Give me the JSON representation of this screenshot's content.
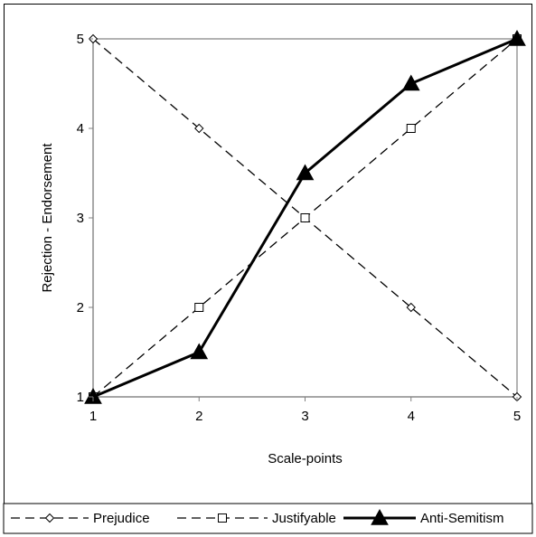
{
  "chart_data": {
    "type": "line",
    "x": [
      1,
      2,
      3,
      4,
      5
    ],
    "xlabel": "Scale-points",
    "ylabel": "Rejection - Endorsement",
    "xlim": [
      1,
      5
    ],
    "ylim": [
      1,
      5
    ],
    "xticks": [
      "1",
      "2",
      "3",
      "4",
      "5"
    ],
    "yticks": [
      "1",
      "2",
      "3",
      "4",
      "5"
    ],
    "grid": false,
    "legend_position": "bottom",
    "series": [
      {
        "name": "Prejudice",
        "values": [
          5,
          4,
          3,
          2,
          1
        ],
        "marker": "diamond",
        "line": "dashed",
        "color": "#000000"
      },
      {
        "name": "Justifyable",
        "values": [
          1,
          2,
          3,
          4,
          5
        ],
        "marker": "square",
        "line": "dashed",
        "color": "#000000"
      },
      {
        "name": "Anti-Semitism",
        "values": [
          1,
          1.5,
          3.5,
          4.5,
          5
        ],
        "marker": "triangle",
        "line": "solid",
        "color": "#000000"
      }
    ]
  }
}
